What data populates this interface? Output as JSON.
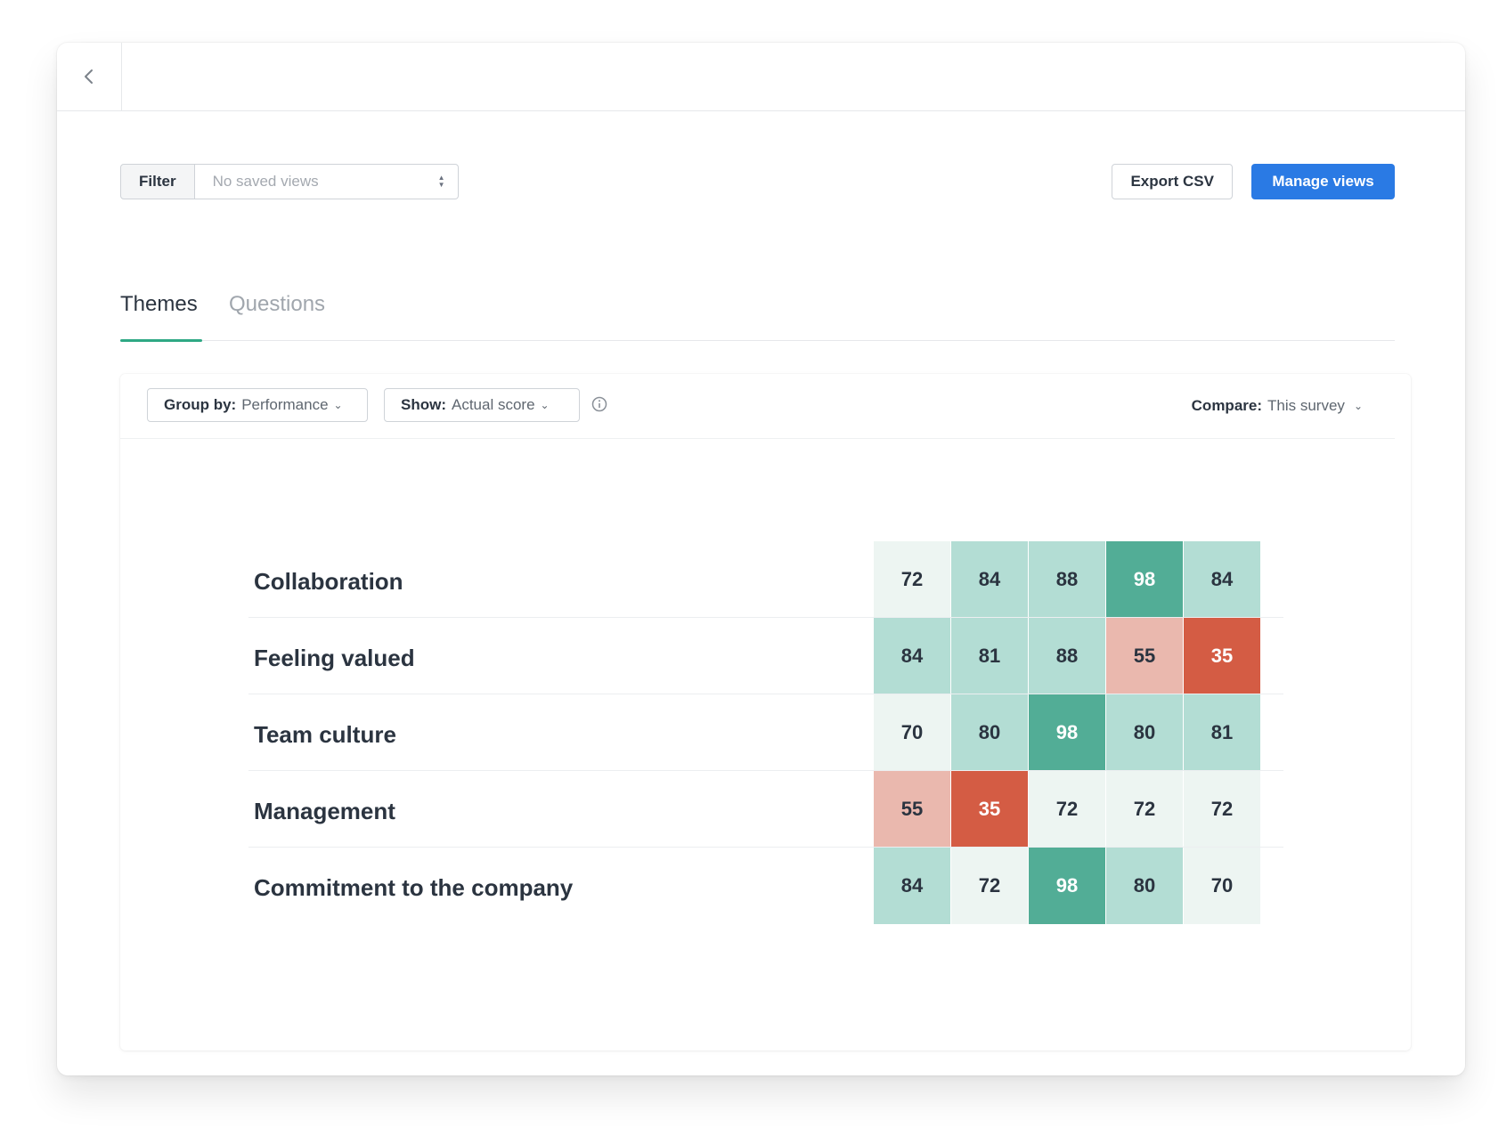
{
  "toolbar": {
    "filter_label": "Filter",
    "saved_views_placeholder": "No saved views",
    "export_label": "Export CSV",
    "manage_label": "Manage views"
  },
  "tabs": [
    {
      "label": "Themes",
      "active": true
    },
    {
      "label": "Questions",
      "active": false
    }
  ],
  "controls": {
    "group_by_key": "Group by:",
    "group_by_value": "Performance",
    "show_key": "Show:",
    "show_value": "Actual score",
    "compare_key": "Compare:",
    "compare_value": "This survey"
  },
  "colors": {
    "accent": "#2a7ae4",
    "tab_underline": "#2ea884",
    "score_light": "#edf5f2",
    "score_mid": "#b3ddd4",
    "score_high": "#52ad96",
    "score_low": "#eab8ae",
    "score_very_low": "#d45c44"
  },
  "chart_data": {
    "type": "heatmap",
    "rows": [
      {
        "label": "Collaboration",
        "values": [
          72,
          84,
          88,
          98,
          84
        ],
        "shades": [
          "light",
          "mid",
          "mid",
          "dark",
          "mid"
        ]
      },
      {
        "label": "Feeling valued",
        "values": [
          84,
          81,
          88,
          55,
          35
        ],
        "shades": [
          "mid",
          "mid",
          "mid",
          "pink",
          "red"
        ]
      },
      {
        "label": "Team culture",
        "values": [
          70,
          80,
          98,
          80,
          81
        ],
        "shades": [
          "light",
          "mid",
          "dark",
          "mid",
          "mid"
        ]
      },
      {
        "label": "Management",
        "values": [
          55,
          35,
          72,
          72,
          72
        ],
        "shades": [
          "pink",
          "red",
          "light",
          "light",
          "light"
        ]
      },
      {
        "label": "Commitment to the company",
        "values": [
          84,
          72,
          98,
          80,
          70
        ],
        "shades": [
          "mid",
          "light",
          "dark",
          "mid",
          "light"
        ]
      }
    ]
  }
}
